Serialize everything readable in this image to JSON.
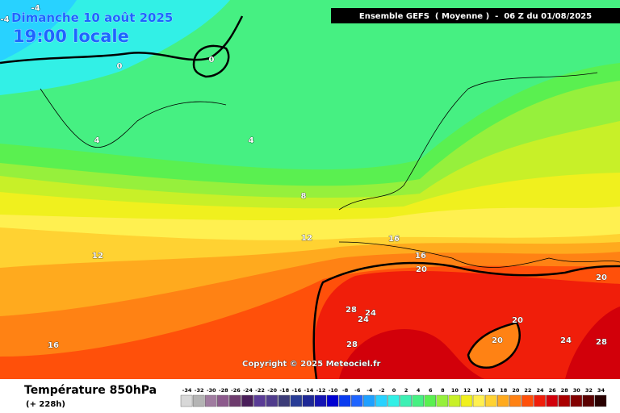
{
  "header": {
    "date": "Dimanche 10 août 2025",
    "time": "19:00 locale",
    "run": "Ensemble GEFS  ( Moyenne )  -  06 Z du 01/08/2025"
  },
  "copyright": "Copyright © 2025 Meteociel.fr",
  "footer": {
    "title": "Température 850hPa",
    "lead": "(+ 228h)"
  },
  "contour_labels": [
    -4,
    -4,
    0,
    0,
    4,
    4,
    8,
    12,
    12,
    16,
    16,
    16,
    20,
    20,
    20,
    20,
    24,
    24,
    24,
    28,
    28,
    28
  ],
  "color_scale": {
    "ticks": [
      -34,
      -32,
      -30,
      -28,
      -26,
      -24,
      -22,
      -20,
      -18,
      -16,
      -14,
      -12,
      -10,
      -8,
      -6,
      -4,
      -2,
      0,
      2,
      4,
      6,
      8,
      10,
      12,
      14,
      16,
      18,
      20,
      22,
      24,
      26,
      28,
      30,
      32,
      34
    ],
    "colors": [
      "#d8d8d8",
      "#b4b4b4",
      "#a07ca0",
      "#8c5a8c",
      "#6e3c6e",
      "#4a1e5a",
      "#5a3c96",
      "#503c8c",
      "#3c3c78",
      "#283c96",
      "#1e2896",
      "#1414b4",
      "#0000d2",
      "#0a3cf0",
      "#1e64ff",
      "#1ea0ff",
      "#28d2ff",
      "#32f0e6",
      "#3cf0b4",
      "#46f082",
      "#5af050",
      "#96f03c",
      "#c8f028",
      "#f0f01e",
      "#fff050",
      "#ffd232",
      "#ffaa1e",
      "#ff8214",
      "#ff500a",
      "#f01e0a",
      "#d2000a",
      "#aa0000",
      "#820000",
      "#5a0000",
      "#280000"
    ]
  }
}
